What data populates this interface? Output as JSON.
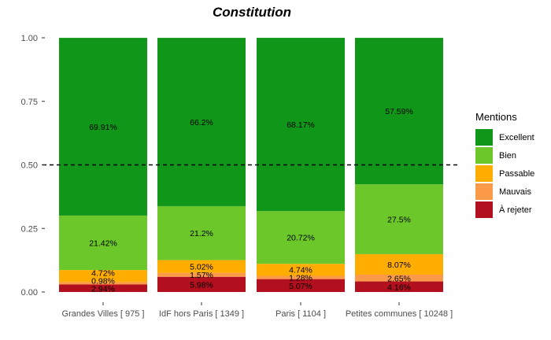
{
  "chart_data": {
    "type": "bar",
    "stacked": true,
    "title": "Constitution",
    "xlabel": "",
    "ylabel": "",
    "ylim": [
      0,
      1
    ],
    "yticks": [
      "0.00",
      "0.25",
      "0.50",
      "0.75",
      "1.00"
    ],
    "reference_line": 0.5,
    "grid": false,
    "categories": [
      "Grandes Villes  [ 975 ]",
      "IdF hors Paris  [ 1349 ]",
      "Paris  [ 1104 ]",
      "Petites communes  [ 10248 ]"
    ],
    "legend": {
      "title": "Mentions",
      "position": "right"
    },
    "series": [
      {
        "name": "À rejeter",
        "color": "#b20f1f",
        "values": [
          0.0294,
          0.0598,
          0.0507,
          0.0416
        ],
        "labels": [
          "2.94%",
          "5.98%",
          "5.07%",
          "4.16%"
        ]
      },
      {
        "name": "Mauvais",
        "color": "#fb9a48",
        "values": [
          0.0098,
          0.0157,
          0.0128,
          0.0265
        ],
        "labels": [
          "0.98%",
          "1.57%",
          "1.28%",
          "2.65%"
        ]
      },
      {
        "name": "Passable",
        "color": "#ffad00",
        "values": [
          0.0472,
          0.0502,
          0.0474,
          0.0807
        ],
        "labels": [
          "4.72%",
          "5.02%",
          "4.74%",
          "8.07%"
        ]
      },
      {
        "name": "Bien",
        "color": "#6cc72b",
        "values": [
          0.2142,
          0.212,
          0.2072,
          0.275
        ],
        "labels": [
          "21.42%",
          "21.2%",
          "20.72%",
          "27.5%"
        ]
      },
      {
        "name": "Excellent",
        "color": "#109618",
        "values": [
          0.6991,
          0.662,
          0.6817,
          0.5759
        ],
        "labels": [
          "69.91%",
          "66.2%",
          "68.17%",
          "57.59%"
        ]
      }
    ]
  }
}
